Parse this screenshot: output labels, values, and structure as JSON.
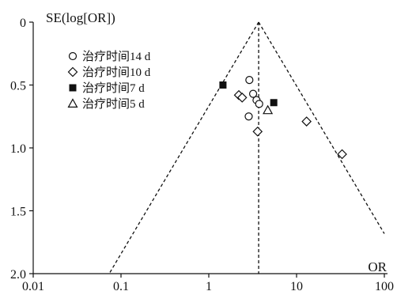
{
  "chart_data": {
    "type": "scatter",
    "title": "",
    "ylabel": "SE(log[OR])",
    "xlabel": "OR",
    "x_scale": "log",
    "xlim": [
      0.01,
      100
    ],
    "ylim": [
      0,
      2.0
    ],
    "y_inverted": true,
    "x_ticks": [
      "0.01",
      "0.1",
      "1",
      "10",
      "100"
    ],
    "y_ticks": [
      "0",
      "0.5",
      "1.0",
      "1.5",
      "2.0"
    ],
    "grid": false,
    "legend_position": "upper-left",
    "pooled_or": 3.7,
    "funnel": {
      "apex_se": 0,
      "bottom_se": 2.0
    },
    "series": [
      {
        "name": "治疗时间14 d",
        "marker": "open-circle",
        "points": [
          [
            2.9,
            0.46
          ],
          [
            3.2,
            0.57
          ],
          [
            3.5,
            0.62
          ],
          [
            3.75,
            0.65
          ],
          [
            2.85,
            0.75
          ]
        ]
      },
      {
        "name": "治疗时间10 d",
        "marker": "open-diamond",
        "points": [
          [
            2.2,
            0.58
          ],
          [
            2.4,
            0.6
          ],
          [
            3.6,
            0.87
          ],
          [
            13.0,
            0.79
          ],
          [
            33.0,
            1.05
          ]
        ]
      },
      {
        "name": "治疗时间7 d",
        "marker": "filled-square",
        "points": [
          [
            1.45,
            0.5
          ],
          [
            5.5,
            0.64
          ]
        ]
      },
      {
        "name": "治疗时间5 d",
        "marker": "open-triangle",
        "points": [
          [
            4.7,
            0.7
          ]
        ]
      }
    ]
  }
}
